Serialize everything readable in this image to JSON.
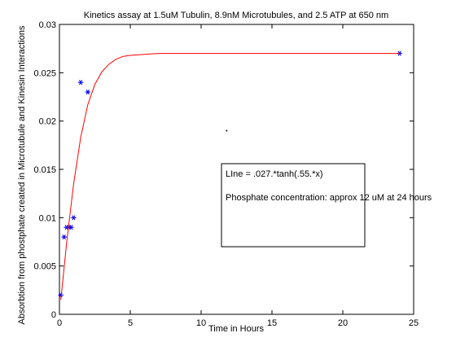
{
  "chart_data": {
    "type": "scatter",
    "title": "Kinetics assay at 1.5uM Tubulin, 8.9nM Microtubules, and 2.5 ATP at 650 nm",
    "xlabel": "Time in Hours",
    "ylabel": "Absorbtion from phostphate created in Microtubule and Kinesin Interactions",
    "xlim": [
      0,
      25
    ],
    "ylim": [
      0,
      0.03
    ],
    "xticks": [
      0,
      5,
      10,
      15,
      20,
      25
    ],
    "xtick_labels": [
      "0",
      "5",
      "10",
      "15",
      "20",
      "25"
    ],
    "yticks": [
      0,
      0.005,
      0.01,
      0.015,
      0.02,
      0.025,
      0.03
    ],
    "ytick_labels": [
      "0",
      "0.005",
      "0.01",
      "0.015",
      "0.02",
      "0.025",
      "0.03"
    ],
    "grid": false,
    "series": [
      {
        "kind": "scatter",
        "marker": "*",
        "color": "#0000ff",
        "x": [
          0.1,
          0.33,
          0.5,
          0.67,
          0.83,
          1.0,
          1.5,
          2.0,
          24.0
        ],
        "y": [
          0.002,
          0.008,
          0.009,
          0.009,
          0.009,
          0.01,
          0.024,
          0.023,
          0.027
        ]
      },
      {
        "kind": "line",
        "color": "#ff0000",
        "x": [
          0.1,
          0.5,
          1.0,
          1.5,
          2.0,
          2.5,
          3.0,
          3.5,
          4.0,
          4.5,
          5.0,
          6.0,
          7.0,
          8.0,
          10.0,
          12.0,
          15.0,
          18.0,
          21.0,
          24.0
        ],
        "y": [
          0.0015,
          0.0073,
          0.0135,
          0.0183,
          0.0217,
          0.0238,
          0.0251,
          0.0259,
          0.0264,
          0.0267,
          0.0268,
          0.0269,
          0.027,
          0.027,
          0.027,
          0.027,
          0.027,
          0.027,
          0.027,
          0.027
        ]
      }
    ],
    "stray_point": {
      "x": 11.8,
      "y": 0.019
    },
    "annotation": {
      "lines": [
        "LIne = .027.*tanh(.55.*x)",
        "Phosphate concentration: approx 12 uM at 24 hours"
      ]
    }
  }
}
